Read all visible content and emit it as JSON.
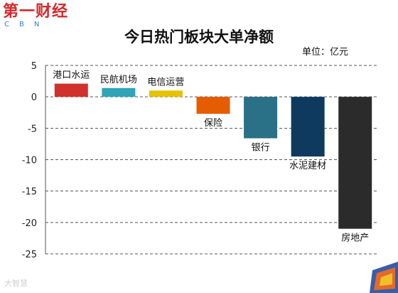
{
  "logo": {
    "main": "第一财经",
    "sub": "CBN"
  },
  "watermark": "大智慧",
  "colors": {
    "logo_red": "#d4282c",
    "logo_blue": "#3a7cc4"
  },
  "chart_data": {
    "type": "bar",
    "title": "今日热门板块大单净额",
    "unit_label": "单位：亿元",
    "categories": [
      "港口水运",
      "民航机场",
      "电信运营",
      "保险",
      "银行",
      "水泥建材",
      "房地产"
    ],
    "values": [
      2.1,
      1.4,
      1.0,
      -2.7,
      -6.6,
      -9.5,
      -21.0
    ],
    "colors": [
      "#d0312d",
      "#31a4b8",
      "#e6c200",
      "#e65c00",
      "#2a7087",
      "#0f3a5f",
      "#2b2b2b"
    ],
    "yticks": [
      5,
      0,
      -5,
      -10,
      -15,
      -20,
      -25
    ],
    "ylim": [
      -25,
      5
    ],
    "grid": true,
    "legend": false
  }
}
